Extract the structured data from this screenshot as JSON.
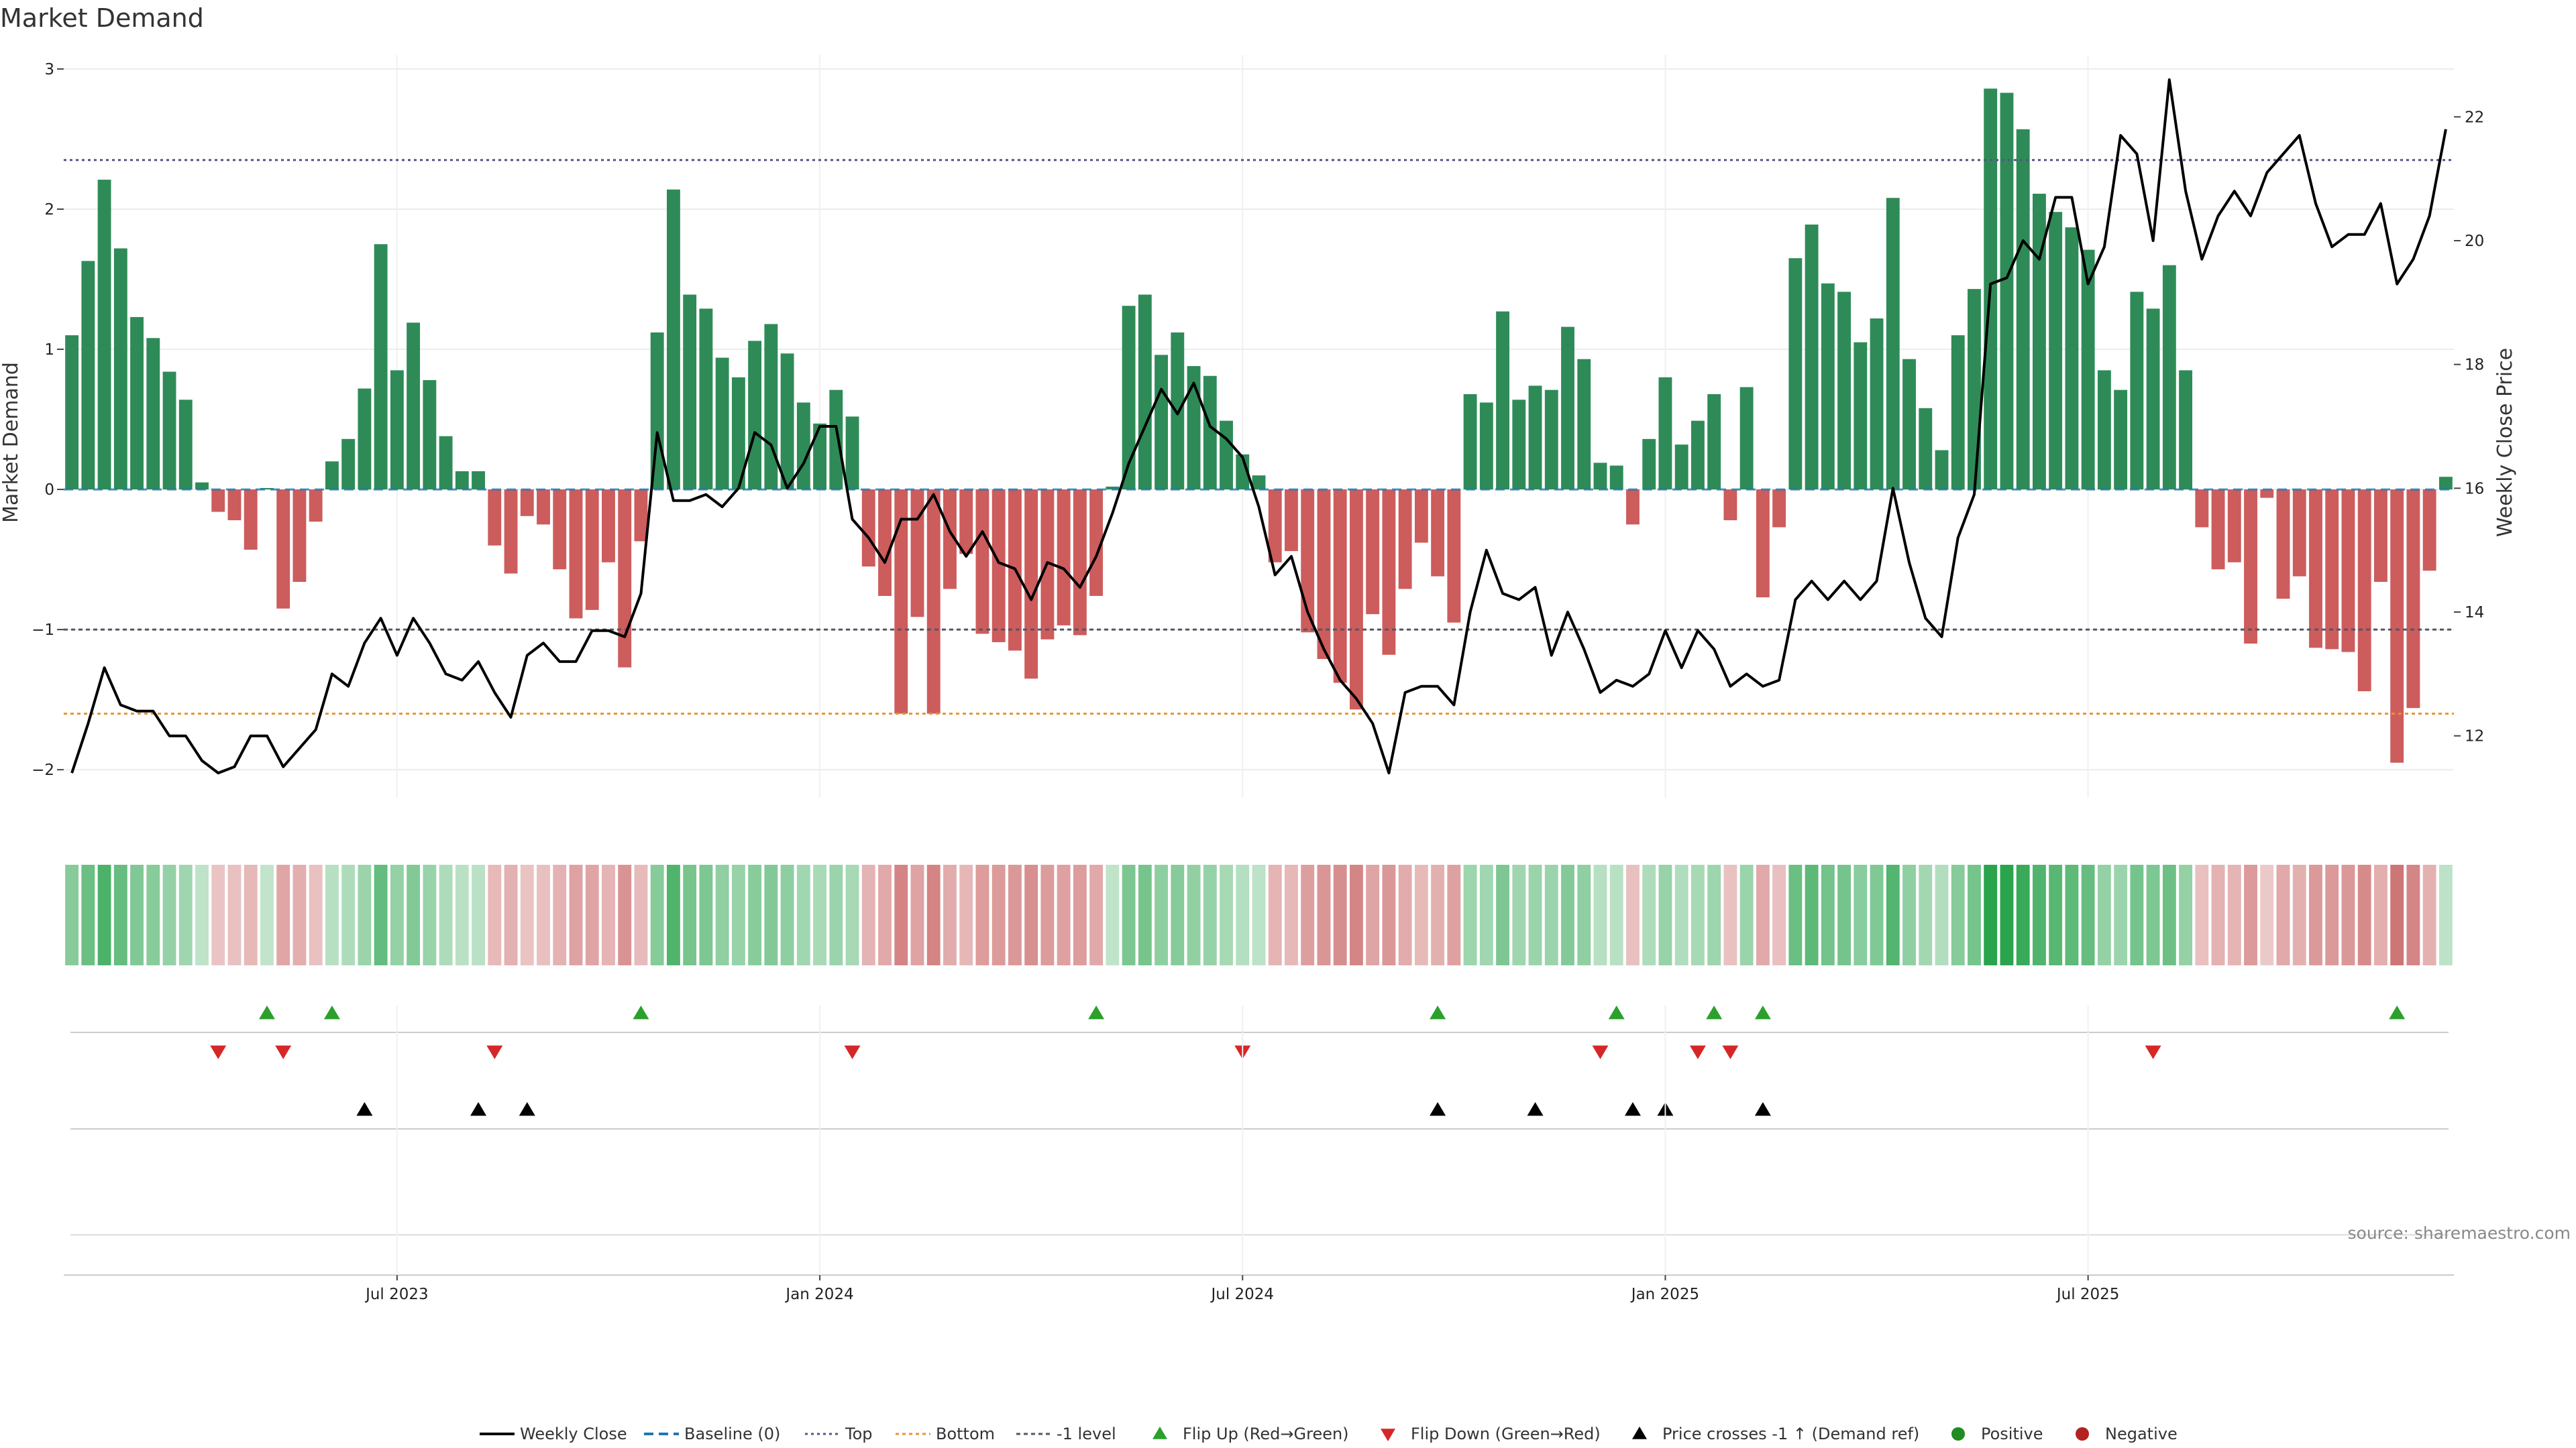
{
  "chart_data": {
    "type": "bar",
    "title": "Market Demand",
    "ylabel_left": "Market Demand",
    "ylabel_right": "Weekly Close Price",
    "ylim_left": [
      -2.2,
      3.1
    ],
    "ylim_right": [
      11.0,
      23.0
    ],
    "left_ticks": [
      3,
      2,
      1,
      0,
      -1,
      -2
    ],
    "left_tick_labels": [
      "3",
      "2",
      "1",
      "0",
      "−1",
      "−2"
    ],
    "right_ticks": [
      22,
      20,
      18,
      16,
      14,
      12
    ],
    "right_tick_labels": [
      "22",
      "20",
      "18",
      "16",
      "14",
      "12"
    ],
    "x_ticks": [
      {
        "label": "Jul 2023",
        "index": 20
      },
      {
        "label": "Jan 2024",
        "index": 46
      },
      {
        "label": "Jul 2024",
        "index": 72
      },
      {
        "label": "Jan 2025",
        "index": 98
      },
      {
        "label": "Jul 2025",
        "index": 124
      }
    ],
    "levels": {
      "top": 2.35,
      "bottom": -1.6,
      "minus_one": -1.0
    },
    "demand": [
      1.1,
      1.63,
      2.21,
      1.72,
      1.23,
      1.08,
      0.84,
      0.64,
      0.05,
      -0.16,
      -0.22,
      -0.43,
      0.01,
      -0.85,
      -0.66,
      -0.23,
      0.2,
      0.36,
      0.72,
      1.75,
      0.85,
      1.19,
      0.78,
      0.38,
      0.13,
      0.13,
      -0.4,
      -0.6,
      -0.19,
      -0.25,
      -0.57,
      -0.92,
      -0.86,
      -0.52,
      -1.27,
      -0.37,
      1.12,
      2.14,
      1.39,
      1.29,
      0.94,
      0.8,
      1.06,
      1.18,
      0.97,
      0.62,
      0.47,
      0.71,
      0.52,
      -0.55,
      -0.76,
      -1.6,
      -0.91,
      -1.6,
      -0.71,
      -0.46,
      -1.03,
      -1.09,
      -1.15,
      -1.35,
      -1.07,
      -0.97,
      -1.04,
      -0.76,
      0.02,
      1.31,
      1.39,
      0.96,
      1.12,
      0.88,
      0.81,
      0.49,
      0.25,
      0.1,
      -0.52,
      -0.44,
      -1.02,
      -1.21,
      -1.38,
      -1.57,
      -0.89,
      -1.18,
      -0.71,
      -0.38,
      -0.62,
      -0.95,
      0.68,
      0.62,
      1.27,
      0.64,
      0.74,
      0.71,
      1.16,
      0.93,
      0.19,
      0.17,
      -0.25,
      0.36,
      0.8,
      0.32,
      0.49,
      0.68,
      -0.22,
      0.73,
      -0.77,
      -0.27,
      1.65,
      1.89,
      1.47,
      1.41,
      1.05,
      1.22,
      2.08,
      0.93,
      0.58,
      0.28,
      1.1,
      1.43,
      2.86,
      2.83,
      2.57,
      2.11,
      1.98,
      1.87,
      1.71,
      0.85,
      0.71,
      1.41,
      1.29,
      1.6,
      0.85,
      -0.27,
      -0.57,
      -0.52,
      -1.1,
      -0.06,
      -0.78,
      -0.62,
      -1.13,
      -1.14,
      -1.16,
      -1.44,
      -0.66,
      -1.95,
      -1.56,
      -0.58,
      0.09
    ],
    "weekly_close": [
      11.4,
      12.2,
      13.1,
      12.5,
      12.4,
      12.4,
      12.0,
      12.0,
      11.6,
      11.4,
      11.5,
      12.0,
      12.0,
      11.5,
      11.8,
      12.1,
      13.0,
      12.8,
      13.5,
      13.9,
      13.3,
      13.9,
      13.5,
      13.0,
      12.9,
      13.2,
      12.7,
      12.3,
      13.3,
      13.5,
      13.2,
      13.2,
      13.7,
      13.7,
      13.6,
      14.3,
      16.9,
      15.8,
      15.8,
      15.9,
      15.7,
      16.0,
      16.9,
      16.7,
      16.0,
      16.4,
      17.0,
      17.0,
      15.5,
      15.2,
      14.8,
      15.5,
      15.5,
      15.9,
      15.3,
      14.9,
      15.3,
      14.8,
      14.7,
      14.2,
      14.8,
      14.7,
      14.4,
      14.9,
      15.6,
      16.4,
      17.0,
      17.6,
      17.2,
      17.7,
      17.0,
      16.8,
      16.5,
      15.7,
      14.6,
      14.9,
      14.0,
      13.4,
      12.9,
      12.6,
      12.2,
      11.4,
      12.7,
      12.8,
      12.8,
      12.5,
      14.0,
      15.0,
      14.3,
      14.2,
      14.4,
      13.3,
      14.0,
      13.4,
      12.7,
      12.9,
      12.8,
      13.0,
      13.7,
      13.1,
      13.7,
      13.4,
      12.8,
      13.0,
      12.8,
      12.9,
      14.2,
      14.5,
      14.2,
      14.5,
      14.2,
      14.5,
      16.0,
      14.8,
      13.9,
      13.6,
      15.2,
      15.9,
      19.3,
      19.4,
      20.0,
      19.7,
      20.7,
      20.7,
      19.3,
      19.9,
      21.7,
      21.4,
      20.0,
      22.6,
      20.8,
      19.7,
      20.4,
      20.8,
      20.4,
      21.1,
      21.4,
      21.7,
      20.6,
      19.9,
      20.1,
      20.1,
      20.6,
      19.3,
      19.7,
      20.4,
      21.8
    ],
    "flip_up": [
      12,
      16,
      35,
      63,
      84,
      95,
      101,
      104,
      143
    ],
    "flip_down": [
      9,
      13,
      26,
      48,
      72,
      94,
      100,
      102,
      128
    ],
    "price_cross": [
      18,
      25,
      28,
      84,
      90,
      96,
      98,
      104
    ],
    "legend": [
      "Weekly Close",
      "Baseline (0)",
      "Top",
      "Bottom",
      "-1 level",
      "Flip Up (Red→Green)",
      "Flip Down (Green→Red)",
      "Price crosses -1 ↑ (Demand ref)",
      "Positive",
      "Negative"
    ],
    "source": "source: sharemaestro.com",
    "grid": true,
    "legend_position": "bottom-center",
    "colors": {
      "pos_bar": "#2e8b57",
      "neg_bar": "#cd5c5c",
      "line": "#000000",
      "baseline": "#1f77b4",
      "top": "#555588",
      "bottom": "#e8952f",
      "minus_one": "#555566",
      "flip_up": "#2ca02c",
      "flip_down": "#d62728",
      "positive": "#228b22",
      "negative": "#b22222"
    }
  }
}
